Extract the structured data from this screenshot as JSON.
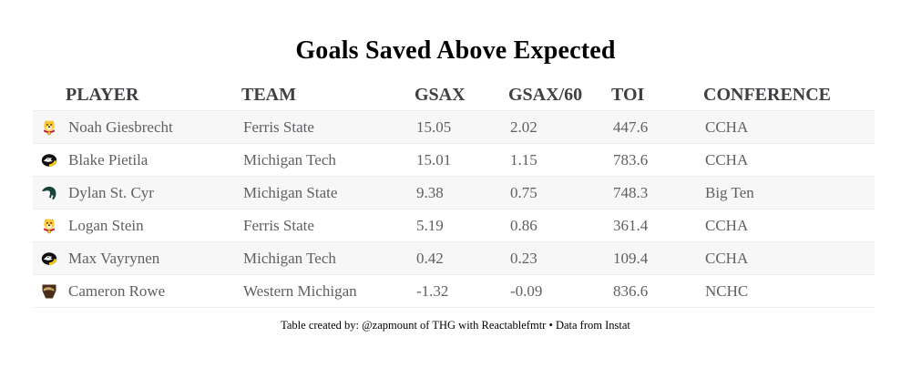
{
  "chart_data": {
    "type": "table",
    "title": "Goals Saved Above Expected",
    "columns": [
      "PLAYER",
      "TEAM",
      "GSAX",
      "GSAX/60",
      "TOI",
      "CONFERENCE"
    ],
    "rows": [
      {
        "player": "Noah Giesbrecht",
        "team": "Ferris State",
        "gsax": "15.05",
        "gsax60": "2.02",
        "toi": "447.6",
        "conference": "CCHA",
        "logo": "ferris-state"
      },
      {
        "player": "Blake Pietila",
        "team": "Michigan Tech",
        "gsax": "15.01",
        "gsax60": "1.15",
        "toi": "783.6",
        "conference": "CCHA",
        "logo": "michigan-tech"
      },
      {
        "player": "Dylan St. Cyr",
        "team": "Michigan State",
        "gsax": "9.38",
        "gsax60": "0.75",
        "toi": "748.3",
        "conference": "Big Ten",
        "logo": "michigan-state"
      },
      {
        "player": "Logan Stein",
        "team": "Ferris State",
        "gsax": "5.19",
        "gsax60": "0.86",
        "toi": "361.4",
        "conference": "CCHA",
        "logo": "ferris-state"
      },
      {
        "player": "Max Vayrynen",
        "team": "Michigan Tech",
        "gsax": "0.42",
        "gsax60": "0.23",
        "toi": "109.4",
        "conference": "CCHA",
        "logo": "michigan-tech"
      },
      {
        "player": "Cameron Rowe",
        "team": "Western Michigan",
        "gsax": "-1.32",
        "gsax60": "-0.09",
        "toi": "836.6",
        "conference": "NCHC",
        "logo": "western-michigan"
      }
    ],
    "footer": "Table created by: @zapmount of THG with Reactablefmtr • Data from Instat",
    "layout": {
      "striped": true,
      "stripe_color": "#f7f7f7",
      "border_color": "#ededed"
    }
  },
  "colors": {
    "title_text": "#000000",
    "header_text": "#3e4043",
    "cell_text": "#5e6063",
    "stripe": "#f7f7f7",
    "ferris_gold": "#ffc82e",
    "ferris_red": "#c8102e",
    "tech_black": "#111111",
    "tech_gold": "#ffcd00",
    "msu_green": "#18453b",
    "wmu_brown": "#4a2e19",
    "wmu_tan": "#c9a96a"
  }
}
